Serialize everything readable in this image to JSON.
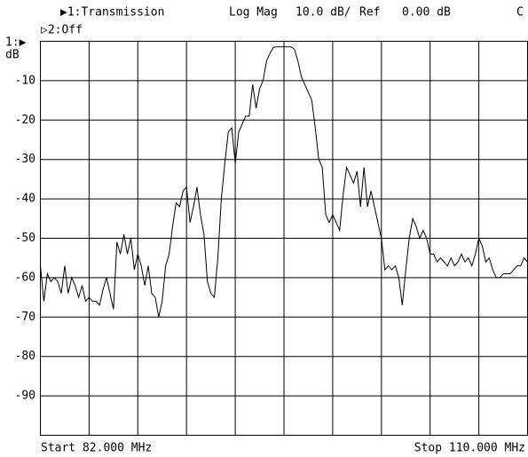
{
  "chart_data": {
    "type": "line",
    "channel1": "▶1:Transmission",
    "format": "Log Mag",
    "scale": "10.0 dB/",
    "ref_label": "Ref",
    "ref_value": "0.00 dB",
    "marker": "C",
    "channel2": "▷2:Off",
    "ref_marker": "1:▶",
    "y_unit": "dB",
    "start": "Start 82.000 MHz",
    "stop": "Stop 110.000 MHz",
    "color": "#000000",
    "xlim": [
      82,
      110
    ],
    "ylim": [
      -100,
      0
    ],
    "yticks": [
      -90,
      -80,
      -70,
      -60,
      -50,
      -40,
      -30,
      -20,
      -10
    ],
    "grid": true,
    "x": [
      82.0,
      82.2,
      82.4,
      82.6,
      82.8,
      83.0,
      83.2,
      83.4,
      83.6,
      83.8,
      84.0,
      84.2,
      84.4,
      84.6,
      84.8,
      85.0,
      85.2,
      85.4,
      85.6,
      85.8,
      86.0,
      86.2,
      86.4,
      86.6,
      86.8,
      87.0,
      87.2,
      87.4,
      87.6,
      87.8,
      88.0,
      88.2,
      88.4,
      88.6,
      88.8,
      89.0,
      89.2,
      89.4,
      89.6,
      89.8,
      90.0,
      90.2,
      90.4,
      90.6,
      90.8,
      91.0,
      91.2,
      91.4,
      91.6,
      91.8,
      92.0,
      92.2,
      92.4,
      92.6,
      92.8,
      93.0,
      93.2,
      93.4,
      93.6,
      93.8,
      94.0,
      94.2,
      94.4,
      94.6,
      94.8,
      95.0,
      95.2,
      95.4,
      95.6,
      95.8,
      96.0,
      96.2,
      96.4,
      96.6,
      96.8,
      97.0,
      97.2,
      97.4,
      97.6,
      97.8,
      98.0,
      98.2,
      98.4,
      98.6,
      98.8,
      99.0,
      99.2,
      99.4,
      99.6,
      99.8,
      100.0,
      100.2,
      100.4,
      100.6,
      100.8,
      101.0,
      101.2,
      101.4,
      101.6,
      101.8,
      102.0,
      102.2,
      102.4,
      102.6,
      102.8,
      103.0,
      103.2,
      103.4,
      103.6,
      103.8,
      104.0,
      104.2,
      104.4,
      104.6,
      104.8,
      105.0,
      105.2,
      105.4,
      105.6,
      105.8,
      106.0,
      106.2,
      106.4,
      106.6,
      106.8,
      107.0,
      107.2,
      107.4,
      107.6,
      107.8,
      108.0,
      108.2,
      108.4,
      108.6,
      108.8,
      109.0,
      109.2,
      109.4,
      109.6,
      109.8,
      110.0
    ],
    "values": [
      -57,
      -66,
      -59,
      -61,
      -60,
      -61,
      -64,
      -57,
      -64,
      -60,
      -62,
      -65,
      -62,
      -66,
      -65,
      -66,
      -66,
      -67,
      -63,
      -60,
      -64,
      -68,
      -51,
      -54,
      -49,
      -54,
      -50,
      -58,
      -54,
      -57,
      -62,
      -57,
      -64,
      -65,
      -70,
      -66,
      -57,
      -54,
      -47,
      -41,
      -42,
      -38,
      -37,
      -46,
      -42,
      -37,
      -44,
      -49,
      -61,
      -64,
      -65,
      -55,
      -40,
      -31,
      -23,
      -22,
      -31,
      -23,
      -21,
      -19,
      -19,
      -11,
      -17,
      -12,
      -10,
      -5,
      -3,
      -1.5,
      -1.4,
      -1.4,
      -1.4,
      -1.4,
      -1.4,
      -2,
      -5,
      -9,
      -11,
      -13,
      -15,
      -22,
      -30,
      -32,
      -44,
      -46,
      -44,
      -46,
      -48,
      -39,
      -32,
      -34,
      -36,
      -33,
      -42,
      -32,
      -42,
      -38,
      -42,
      -46,
      -50,
      -58,
      -57,
      -58,
      -57,
      -60,
      -67,
      -58,
      -50,
      -45,
      -47,
      -50,
      -48,
      -50,
      -54,
      -54,
      -56,
      -55,
      -56,
      -57,
      -55,
      -57,
      -56,
      -54,
      -56,
      -55,
      -57,
      -54,
      -50,
      -52,
      -56,
      -55,
      -58,
      -60,
      -60,
      -59,
      -59,
      -59,
      -58,
      -57,
      -57,
      -55,
      -56
    ]
  }
}
